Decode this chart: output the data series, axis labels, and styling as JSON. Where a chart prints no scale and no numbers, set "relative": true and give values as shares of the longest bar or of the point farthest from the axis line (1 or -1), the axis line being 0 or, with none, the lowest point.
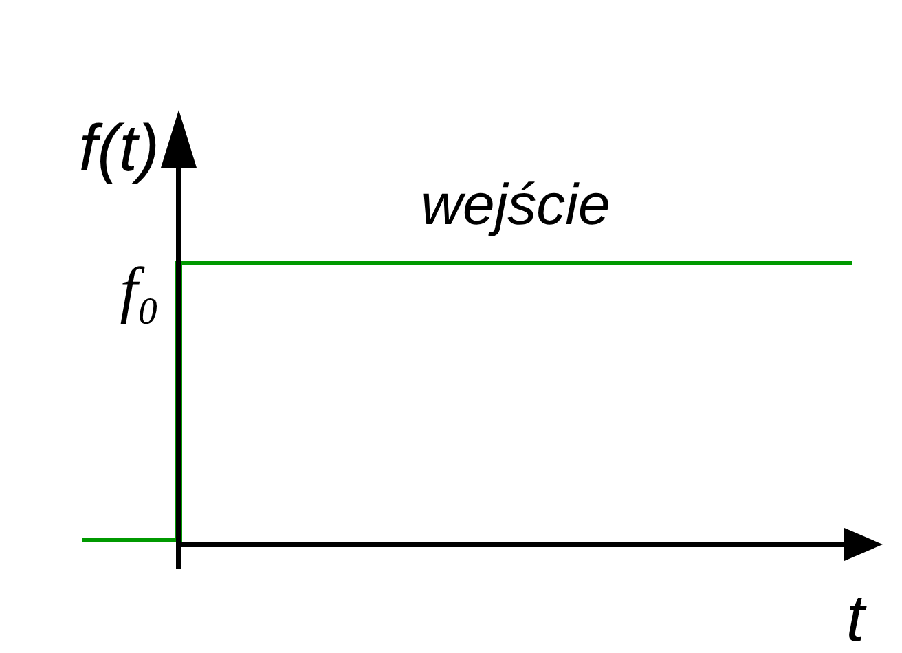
{
  "chart_data": {
    "type": "step",
    "relative": true,
    "xlabel": "t",
    "ylabel": "f(t)",
    "legend": false,
    "grid": false,
    "categories": [
      null,
      null,
      null,
      null,
      null,
      null,
      null,
      null,
      null
    ],
    "series": [
      {
        "name": "wejście",
        "color": "#009900",
        "values": [
          0,
          1,
          1,
          1,
          1,
          1,
          1,
          1,
          1
        ]
      }
    ],
    "annotations": [
      "f₀"
    ]
  }
}
